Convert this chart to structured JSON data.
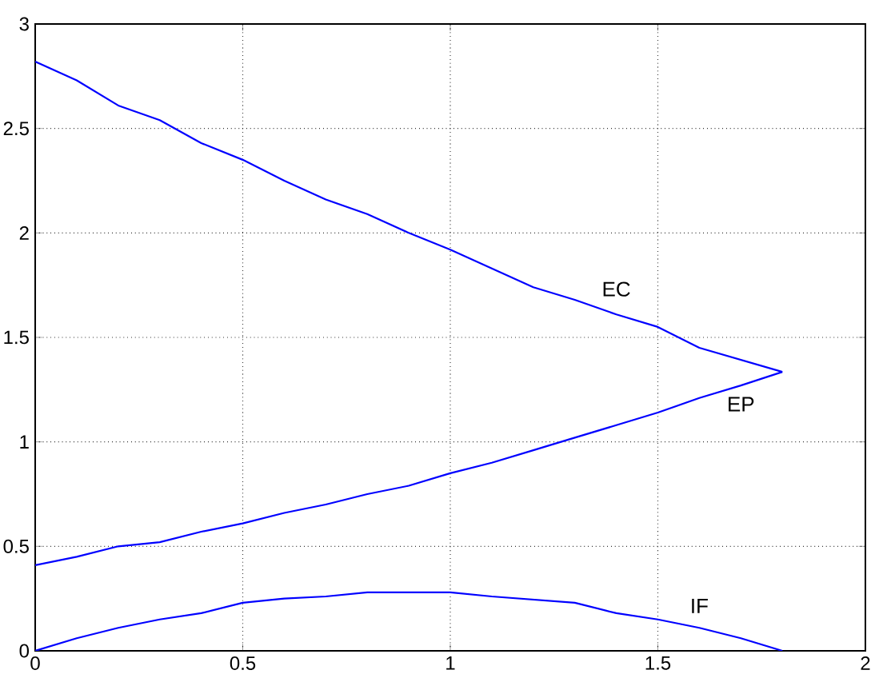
{
  "chart_data": {
    "type": "line",
    "xlim": [
      0,
      2
    ],
    "ylim": [
      0,
      3
    ],
    "xticks": [
      0,
      0.5,
      1,
      1.5,
      2
    ],
    "yticks": [
      0,
      0.5,
      1,
      1.5,
      2,
      2.5,
      3
    ],
    "grid": true,
    "legend": false,
    "marker": "none",
    "line_style": "solid",
    "series": [
      {
        "name": "EC",
        "color": "#0000ff",
        "x": [
          0,
          0.1,
          0.2,
          0.3,
          0.4,
          0.5,
          0.6,
          0.7,
          0.8,
          0.9,
          1.0,
          1.1,
          1.2,
          1.3,
          1.4,
          1.5,
          1.6,
          1.8
        ],
        "values": [
          2.82,
          2.73,
          2.61,
          2.54,
          2.43,
          2.35,
          2.25,
          2.16,
          2.09,
          2.0,
          1.92,
          1.83,
          1.74,
          1.68,
          1.61,
          1.55,
          1.45,
          1.335
        ]
      },
      {
        "name": "EP",
        "color": "#0000ff",
        "x": [
          0,
          0.1,
          0.2,
          0.3,
          0.4,
          0.5,
          0.6,
          0.7,
          0.8,
          0.9,
          1.0,
          1.1,
          1.2,
          1.3,
          1.4,
          1.5,
          1.6,
          1.7,
          1.8
        ],
        "values": [
          0.41,
          0.45,
          0.5,
          0.52,
          0.57,
          0.61,
          0.66,
          0.7,
          0.75,
          0.79,
          0.85,
          0.9,
          0.96,
          1.02,
          1.08,
          1.14,
          1.21,
          1.27,
          1.335
        ]
      },
      {
        "name": "IF",
        "color": "#0000ff",
        "x": [
          0,
          0.1,
          0.2,
          0.3,
          0.4,
          0.5,
          0.6,
          0.7,
          0.8,
          1.0,
          1.1,
          1.3,
          1.4,
          1.5,
          1.6,
          1.7,
          1.8
        ],
        "values": [
          0,
          0.06,
          0.11,
          0.15,
          0.18,
          0.23,
          0.25,
          0.26,
          0.28,
          0.28,
          0.26,
          0.23,
          0.18,
          0.15,
          0.11,
          0.06,
          0
        ]
      }
    ]
  }
}
